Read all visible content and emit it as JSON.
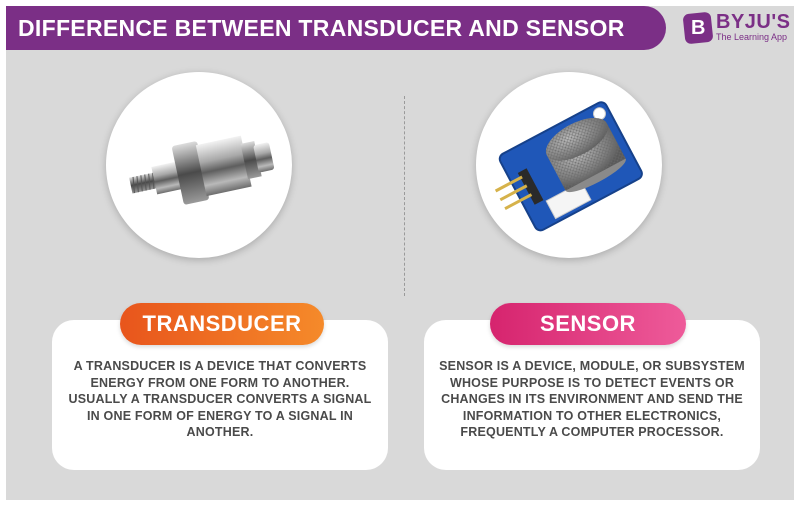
{
  "header": {
    "title": "DIFFERENCE BETWEEN TRANSDUCER AND SENSOR"
  },
  "logo": {
    "mark": "B",
    "name": "BYJU'S",
    "tagline": "The Learning App"
  },
  "transducer": {
    "label": "TRANSDUCER",
    "description": "A TRANSDUCER IS A DEVICE THAT CONVERTS ENERGY FROM ONE FORM TO ANOTHER. USUALLY A TRANSDUCER CONVERTS A SIGNAL IN ONE FORM OF ENERGY TO A SIGNAL IN ANOTHER."
  },
  "sensor": {
    "label": "SENSOR",
    "description": "SENSOR IS A DEVICE, MODULE, OR SUBSYSTEM WHOSE PURPOSE IS TO DETECT EVENTS OR CHANGES IN ITS ENVIRONMENT AND SEND THE INFORMATION TO OTHER ELECTRONICS, FREQUENTLY A COMPUTER PROCESSOR."
  },
  "colors": {
    "brand_purple": "#7b2f86",
    "transducer_orange": "#f07a2a",
    "sensor_pink": "#e23a85",
    "card_text": "#4a4a4a",
    "background": "#d9d9d9"
  },
  "icons": {
    "transducer_image": "pressure-transducer-illustration",
    "sensor_image": "gas-sensor-module-illustration"
  }
}
